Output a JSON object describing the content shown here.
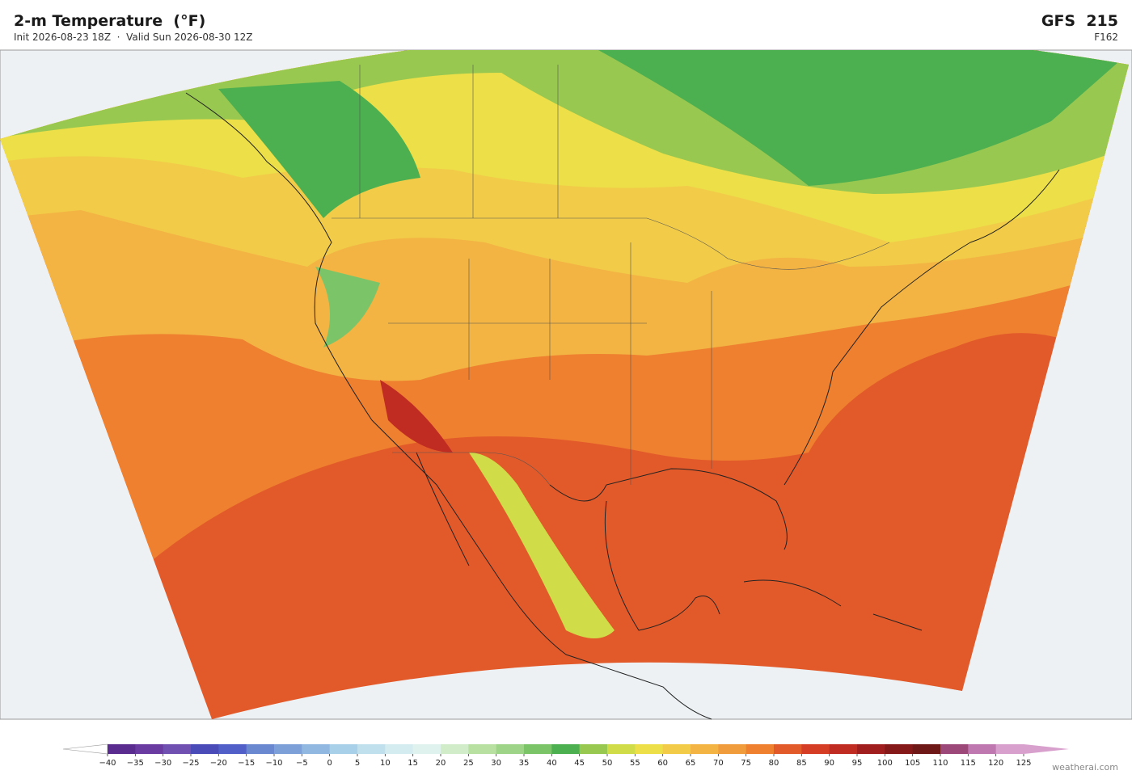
{
  "header": {
    "title": "2-m Temperature  (°F)",
    "subtitle": "Init 2026-08-23 18Z  ·  Valid Sun 2026-08-30 12Z",
    "model": "GFS  215",
    "forecast_hour": "F162"
  },
  "colorbar": {
    "ticks": [
      {
        "value": -40,
        "label": "−40"
      },
      {
        "value": -35,
        "label": "−35"
      },
      {
        "value": -30,
        "label": "−30"
      },
      {
        "value": -25,
        "label": "−25"
      },
      {
        "value": -20,
        "label": "−20"
      },
      {
        "value": -15,
        "label": "−15"
      },
      {
        "value": -10,
        "label": "−10"
      },
      {
        "value": -5,
        "label": "−5"
      },
      0,
      5,
      10,
      15,
      20,
      25,
      30,
      35,
      40,
      45,
      50,
      55,
      60,
      65,
      70,
      75,
      80,
      85,
      90,
      95,
      100,
      105,
      110,
      115,
      120,
      125
    ],
    "colors": [
      "#5b2c8f",
      "#6a3ba0",
      "#7050b0",
      "#4a4ab8",
      "#5060c8",
      "#6a88d0",
      "#7ea0d8",
      "#90b8e0",
      "#a8d0e8",
      "#c0e0ee",
      "#d4ecf0",
      "#e0f2ee",
      "#d0ecc8",
      "#b8e0a0",
      "#9ed488",
      "#7cc468",
      "#4caf50",
      "#98c850",
      "#d0dc48",
      "#ecdf48",
      "#f2cc48",
      "#f3b444",
      "#f19c3c",
      "#ee8030",
      "#e35a2a",
      "#d63d25",
      "#c02b22",
      "#a01e1e",
      "#851818",
      "#6e1818",
      "#9c4878",
      "#c078b0",
      "#d8a0cc"
    ]
  },
  "footer": {
    "credit": "weatherai.com"
  }
}
